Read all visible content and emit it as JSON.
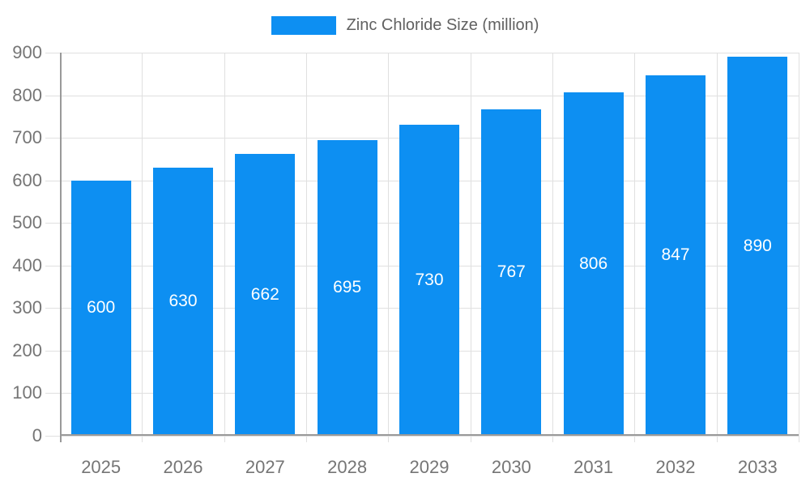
{
  "page": {
    "background_color": "#ffffff"
  },
  "chart_data": {
    "type": "bar",
    "title": "",
    "legend": {
      "label": "Zinc Chloride Size (million)",
      "position": "top",
      "swatch_color": "#0D8FF2"
    },
    "categories": [
      "2025",
      "2026",
      "2027",
      "2028",
      "2029",
      "2030",
      "2031",
      "2032",
      "2033"
    ],
    "series": [
      {
        "name": "Zinc Chloride Size (million)",
        "values": [
          600,
          630,
          662,
          695,
          730,
          767,
          806,
          847,
          890
        ]
      }
    ],
    "value_labels": [
      "600",
      "630",
      "662",
      "695",
      "730",
      "767",
      "806",
      "847",
      "890"
    ],
    "xlabel": "",
    "ylabel": "",
    "ylim": [
      0,
      900
    ],
    "ytick_step": 100,
    "yticks": [
      0,
      100,
      200,
      300,
      400,
      500,
      600,
      700,
      800,
      900
    ],
    "grid": true,
    "colors": {
      "bar": "#0D8FF2",
      "value_label": "#FFFFFF",
      "axis_label": "#757575",
      "legend_text": "#616161",
      "axis_line": "#999999",
      "grid_line": "#E0E0E0"
    }
  }
}
